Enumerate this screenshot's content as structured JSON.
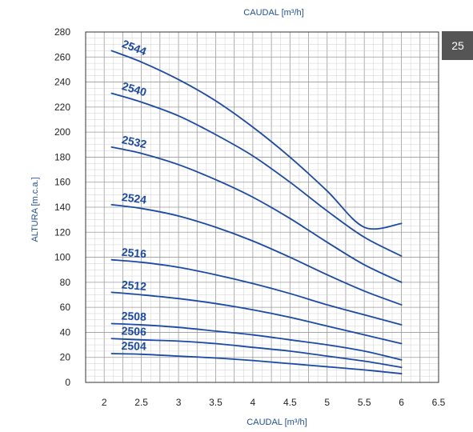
{
  "page_badge": "25",
  "colors": {
    "curve": "#1a49a6",
    "axis_title": "#1f4fa0",
    "grid_major": "#9a9a9a",
    "grid_minor": "#cfcfcf",
    "badge_bg": "#555555"
  },
  "chart_data": {
    "type": "line",
    "title": "",
    "top_axis_label": "CAUDAL [m³/h]",
    "xlabel": "CAUDAL [m³/h]",
    "ylabel": "ALTURA [m.c.a.]",
    "xlim": [
      1.75,
      6.5
    ],
    "ylim": [
      0,
      280
    ],
    "x_ticks": [
      "2",
      "2.5",
      "3",
      "3.5",
      "4",
      "4.5",
      "5",
      "5.5",
      "6",
      "6.5"
    ],
    "y_ticks": [
      "0",
      "20",
      "40",
      "60",
      "80",
      "100",
      "120",
      "140",
      "160",
      "180",
      "200",
      "220",
      "240",
      "260",
      "280"
    ],
    "grid": true,
    "legend": "none",
    "series": [
      {
        "name": "2544",
        "x": [
          2.1,
          2.5,
          3.0,
          3.5,
          4.0,
          4.5,
          5.0,
          5.5,
          6.0
        ],
        "values": [
          265,
          256,
          242,
          225,
          204,
          180,
          153,
          124,
          127
        ]
      },
      {
        "name": "2540",
        "x": [
          2.1,
          2.5,
          3.0,
          3.5,
          4.0,
          4.5,
          5.0,
          5.5,
          6.0
        ],
        "values": [
          231,
          224,
          213,
          198,
          181,
          160,
          137,
          116,
          101
        ]
      },
      {
        "name": "2532",
        "x": [
          2.1,
          2.5,
          3.0,
          3.5,
          4.0,
          4.5,
          5.0,
          5.5,
          6.0
        ],
        "values": [
          188,
          183,
          174,
          162,
          148,
          131,
          112,
          94,
          80
        ]
      },
      {
        "name": "2524",
        "x": [
          2.1,
          2.5,
          3.0,
          3.5,
          4.0,
          4.5,
          5.0,
          5.5,
          6.0
        ],
        "values": [
          142,
          139,
          133,
          124,
          113,
          100,
          86,
          73,
          62
        ]
      },
      {
        "name": "2516",
        "x": [
          2.1,
          2.5,
          3.0,
          3.5,
          4.0,
          4.5,
          5.0,
          5.5,
          6.0
        ],
        "values": [
          98,
          96,
          92,
          86,
          79,
          71,
          62,
          54,
          46
        ]
      },
      {
        "name": "2512",
        "x": [
          2.1,
          2.5,
          3.0,
          3.5,
          4.0,
          4.5,
          5.0,
          5.5,
          6.0
        ],
        "values": [
          72,
          70,
          67,
          63,
          58,
          52,
          45,
          38,
          31
        ]
      },
      {
        "name": "2508",
        "x": [
          2.1,
          2.5,
          3.0,
          3.5,
          4.0,
          4.5,
          5.0,
          5.5,
          6.0
        ],
        "values": [
          47,
          46,
          44,
          41,
          38,
          34,
          30,
          25,
          18
        ]
      },
      {
        "name": "2506",
        "x": [
          2.1,
          2.5,
          3.0,
          3.5,
          4.0,
          4.5,
          5.0,
          5.5,
          6.0
        ],
        "values": [
          35,
          34,
          33,
          31,
          28,
          25,
          21,
          17,
          12
        ]
      },
      {
        "name": "2504",
        "x": [
          2.1,
          2.5,
          3.0,
          3.5,
          4.0,
          4.5,
          5.0,
          5.5,
          6.0
        ],
        "values": [
          23,
          22.5,
          21,
          19.5,
          17.5,
          15,
          12.5,
          10,
          7
        ]
      }
    ]
  }
}
